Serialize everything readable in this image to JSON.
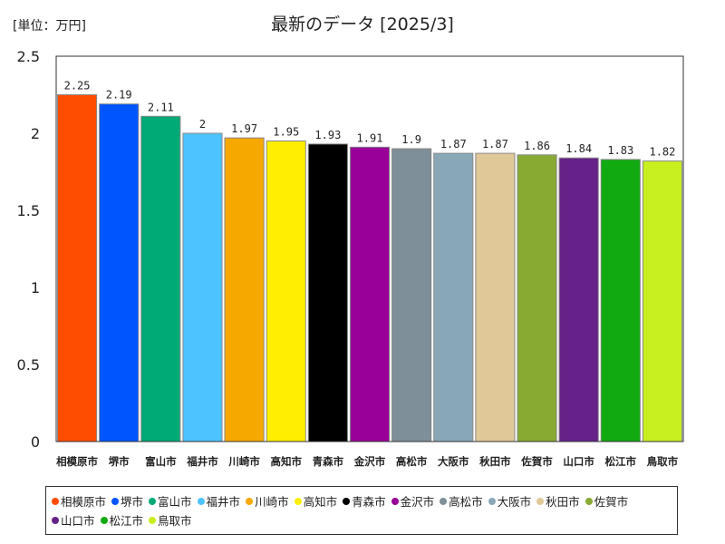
{
  "chart_data": {
    "type": "bar",
    "title": "最新のデータ [2025/3]",
    "unit_label": "[単位：万円]",
    "categories": [
      "相模原市",
      "堺市",
      "富山市",
      "福井市",
      "川崎市",
      "高知市",
      "青森市",
      "金沢市",
      "高松市",
      "大阪市",
      "秋田市",
      "佐賀市",
      "山口市",
      "松江市",
      "鳥取市"
    ],
    "values": [
      2.25,
      2.19,
      2.11,
      2,
      1.97,
      1.95,
      1.93,
      1.91,
      1.9,
      1.87,
      1.87,
      1.86,
      1.84,
      1.83,
      1.82
    ],
    "value_labels": [
      "2.25",
      "2.19",
      "2.11",
      "2",
      "1.97",
      "1.95",
      "1.93",
      "1.91",
      "1.9",
      "1.87",
      "1.87",
      "1.86",
      "1.84",
      "1.83",
      "1.82"
    ],
    "colors": [
      "#ff4d00",
      "#0055ff",
      "#00aa77",
      "#4dc3ff",
      "#f7a800",
      "#ffee00",
      "#000000",
      "#990099",
      "#7f8f99",
      "#88a8b8",
      "#e0c898",
      "#88aa33",
      "#662288",
      "#11aa11",
      "#c8f020"
    ],
    "ylim": [
      0,
      2.5
    ],
    "yticks": [
      0,
      0.5,
      1,
      1.5,
      2,
      2.5
    ],
    "ytick_labels": [
      "0",
      "0.5",
      "1",
      "1.5",
      "2",
      "2.5"
    ],
    "grid": false,
    "legend_position": "bottom"
  }
}
